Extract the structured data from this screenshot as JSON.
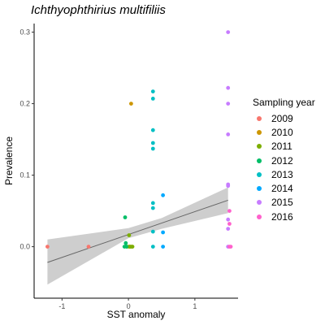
{
  "chart_data": {
    "type": "scatter",
    "title": "Ichthyophthirius multifiliis",
    "xlabel": "SST anomaly",
    "ylabel": "Prevalence",
    "xlim": [
      -1.42,
      1.65
    ],
    "ylim": [
      -0.072,
      0.312
    ],
    "xticks": [
      -1,
      0,
      1
    ],
    "xtick_labels": [
      "-1",
      "0",
      "1"
    ],
    "yticks": [
      0.0,
      0.1,
      0.2,
      0.3
    ],
    "ytick_labels": [
      "0.0",
      "0.1",
      "0.2",
      "0.3"
    ],
    "grid": false,
    "legend_title": "Sampling year",
    "legend_position": "right",
    "series": [
      {
        "name": "2009",
        "color": "#F8766D",
        "points": [
          [
            -1.22,
            0.0
          ],
          [
            -0.6,
            0.0
          ]
        ]
      },
      {
        "name": "2010",
        "color": "#CD9600",
        "points": [
          [
            0.04,
            0.2
          ],
          [
            0.02,
            0.0
          ],
          [
            0.05,
            0.0
          ]
        ]
      },
      {
        "name": "2011",
        "color": "#7CAE00",
        "points": [
          [
            0.01,
            0.016
          ],
          [
            -0.02,
            0.0
          ],
          [
            0.01,
            0.0
          ],
          [
            0.03,
            0.0
          ],
          [
            0.06,
            0.0
          ]
        ]
      },
      {
        "name": "2012",
        "color": "#00BE67",
        "points": [
          [
            -0.05,
            0.041
          ],
          [
            -0.04,
            0.005
          ],
          [
            -0.06,
            0.0
          ],
          [
            -0.03,
            0.0
          ]
        ]
      },
      {
        "name": "2013",
        "color": "#00BFC4",
        "points": [
          [
            0.37,
            0.217
          ],
          [
            0.37,
            0.207
          ],
          [
            0.37,
            0.163
          ],
          [
            0.37,
            0.145
          ],
          [
            0.37,
            0.137
          ],
          [
            0.37,
            0.061
          ],
          [
            0.37,
            0.054
          ],
          [
            0.37,
            0.021
          ],
          [
            0.37,
            0.0
          ]
        ]
      },
      {
        "name": "2014",
        "color": "#00A9FF",
        "points": [
          [
            0.52,
            0.072
          ],
          [
            0.52,
            0.02
          ],
          [
            0.52,
            0.0
          ]
        ]
      },
      {
        "name": "2015",
        "color": "#C77CFF",
        "points": [
          [
            1.5,
            0.3
          ],
          [
            1.5,
            0.222
          ],
          [
            1.5,
            0.2
          ],
          [
            1.5,
            0.157
          ],
          [
            1.5,
            0.087
          ],
          [
            1.5,
            0.085
          ],
          [
            1.5,
            0.038
          ],
          [
            1.5,
            0.025
          ],
          [
            1.5,
            0.0
          ]
        ]
      },
      {
        "name": "2016",
        "color": "#FF61CC",
        "points": [
          [
            1.52,
            0.05
          ],
          [
            1.52,
            0.032
          ],
          [
            1.52,
            0.0
          ],
          [
            1.54,
            0.0
          ]
        ]
      }
    ],
    "trend_line": {
      "x": [
        -1.22,
        1.5
      ],
      "y": [
        -0.022,
        0.065
      ],
      "color": "#666666"
    },
    "confidence_band": {
      "x": [
        -1.22,
        0.0,
        0.5,
        1.5
      ],
      "lower": [
        -0.053,
        0.012,
        0.025,
        0.047
      ],
      "upper": [
        0.01,
        0.026,
        0.04,
        0.083
      ],
      "color": "#BEBEBE"
    }
  }
}
